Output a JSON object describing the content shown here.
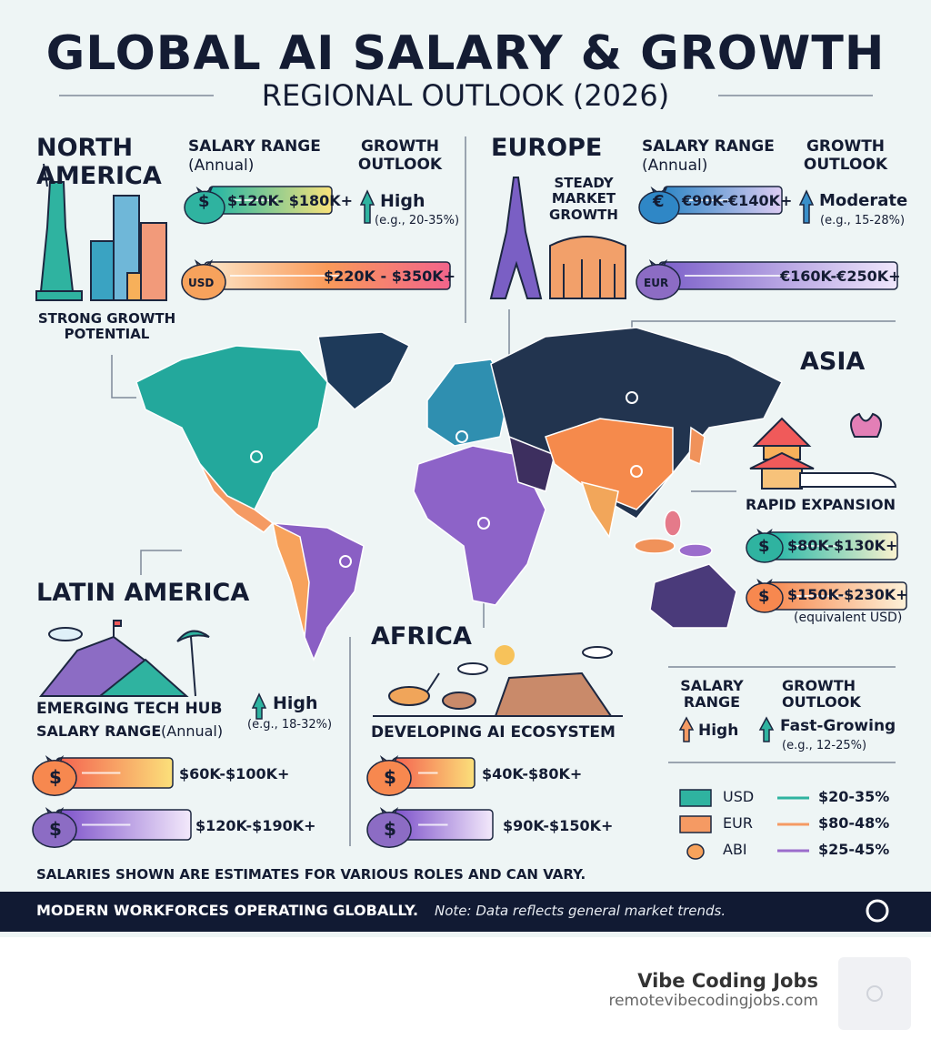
{
  "header": {
    "title": "GLOBAL AI SALARY & GROWTH",
    "subtitle": "REGIONAL OUTLOOK (2026)"
  },
  "regions": {
    "north_america": {
      "name": "NORTH AMERICA",
      "salary_label": "SALARY RANGE",
      "salary_note": "(Annual)",
      "growth_label": "GROWTH OUTLOOK",
      "growth_level": "High",
      "growth_range": "(e.g., 20-35%)",
      "currency_symbol": "$",
      "salary_entry": "$120K- $180K+",
      "currency_code": "USD",
      "salary_senior": "$220K - $350K+",
      "tagline": "STRONG GROWTH POTENTIAL"
    },
    "europe": {
      "name": "EUROPE",
      "tagline": "STEADY MARKET GROWTH",
      "salary_label": "SALARY RANGE",
      "salary_note": "(Annual)",
      "growth_label": "GROWTH OUTLOOK",
      "growth_level": "Moderate",
      "growth_range": "(e.g., 15-28%)",
      "currency_symbol": "€",
      "salary_entry": "€90K-€140K+",
      "currency_code": "EUR",
      "salary_senior": "€160K-€250K+"
    },
    "asia": {
      "name": "ASIA",
      "tagline": "RAPID EXPANSION",
      "currency_symbol": "$",
      "salary_entry": "$80K-$130K+",
      "salary_senior": "$150K-$230K+",
      "salary_note": "(equivalent USD)"
    },
    "latin_america": {
      "name": "LATIN AMERICA",
      "tagline": "EMERGING TECH HUB",
      "salary_label": "SALARY RANGE",
      "salary_note": "(Annual)",
      "growth_level": "High",
      "growth_range": "(e.g., 18-32%)",
      "currency_symbol": "$",
      "salary_entry": "$60K-$100K+",
      "salary_senior": "$120K-$190K+"
    },
    "africa": {
      "name": "AFRICA",
      "tagline": "DEVELOPING AI ECOSYSTEM",
      "currency_symbol": "$",
      "salary_entry": "$40K-$80K+",
      "salary_senior": "$90K-$150K+"
    }
  },
  "legend": {
    "salary_label": "SALARY RANGE",
    "salary_level": "High",
    "growth_label": "GROWTH OUTLOOK",
    "growth_level": "Fast-Growing",
    "growth_range": "(e.g., 12-25%)",
    "items": [
      {
        "currency": "USD",
        "range": "$20-35%"
      },
      {
        "currency": "EUR",
        "range": "$80-48%"
      },
      {
        "currency": "ABI",
        "range": "$25-45%"
      }
    ]
  },
  "disclaimer": "SALARIES SHOWN ARE ESTIMATES FOR VARIOUS ROLES AND CAN VARY.",
  "footer": {
    "tagline": "MODERN WORKFORCES OPERATING GLOBALLY.",
    "note": "Note: Data reflects general market trends."
  },
  "brand": {
    "name": "Vibe Coding Jobs",
    "url": "remotevibecodingjobs.com"
  }
}
